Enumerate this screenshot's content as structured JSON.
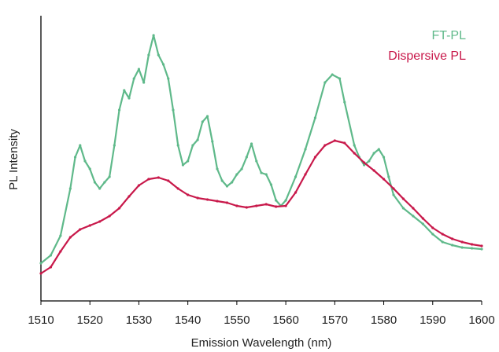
{
  "chart_data": {
    "type": "line",
    "xlabel": "Emission Wavelength (nm)",
    "ylabel": "PL Intensity",
    "xlim": [
      1510,
      1600
    ],
    "xticks": [
      1510,
      1520,
      1530,
      1540,
      1550,
      1560,
      1570,
      1580,
      1590,
      1600
    ],
    "ylim": [
      0,
      360
    ],
    "legend": "upper right",
    "series": [
      {
        "name": "FT-PL",
        "color": "#5fb98a",
        "x": [
          1510,
          1512,
          1514,
          1516,
          1517,
          1518,
          1519,
          1520,
          1521,
          1522,
          1523,
          1524,
          1525,
          1526,
          1527,
          1528,
          1529,
          1530,
          1531,
          1532,
          1533,
          1534,
          1535,
          1536,
          1537,
          1538,
          1539,
          1540,
          1541,
          1542,
          1543,
          1544,
          1545,
          1546,
          1547,
          1548,
          1549,
          1550,
          1551,
          1552,
          1553,
          1554,
          1555,
          1556,
          1557,
          1558,
          1559,
          1560,
          1562,
          1564,
          1566,
          1568,
          1569.5,
          1571,
          1572,
          1574,
          1575,
          1576,
          1577,
          1578,
          1579,
          1580,
          1581,
          1582,
          1584,
          1586,
          1588,
          1590,
          1592,
          1594,
          1596,
          1598,
          1600
        ],
        "values": [
          48,
          58,
          83,
          143,
          183,
          198,
          178,
          168,
          151,
          143,
          151,
          158,
          198,
          243,
          268,
          258,
          283,
          295,
          278,
          313,
          338,
          313,
          301,
          283,
          243,
          198,
          173,
          178,
          198,
          205,
          228,
          235,
          203,
          168,
          153,
          146,
          151,
          161,
          168,
          183,
          200,
          178,
          163,
          161,
          148,
          128,
          121,
          128,
          158,
          193,
          233,
          278,
          288,
          283,
          253,
          198,
          183,
          173,
          178,
          188,
          193,
          183,
          158,
          135,
          118,
          108,
          98,
          85,
          75,
          71,
          68,
          67,
          66
        ]
      },
      {
        "name": "Dispersive PL",
        "color": "#c8184a",
        "x": [
          1510,
          1512,
          1514,
          1516,
          1518,
          1520,
          1522,
          1524,
          1526,
          1528,
          1530,
          1532,
          1534,
          1536,
          1538,
          1540,
          1542,
          1544,
          1546,
          1548,
          1550,
          1552,
          1554,
          1556,
          1558,
          1560,
          1562,
          1564,
          1566,
          1568,
          1570,
          1572,
          1574,
          1576,
          1578,
          1580,
          1582,
          1584,
          1586,
          1588,
          1590,
          1592,
          1594,
          1596,
          1598,
          1600
        ],
        "values": [
          35,
          43,
          63,
          81,
          91,
          96,
          101,
          108,
          118,
          133,
          147,
          155,
          157,
          153,
          143,
          135,
          131,
          129,
          127,
          125,
          121,
          119,
          121,
          123,
          120,
          121,
          138,
          161,
          183,
          198,
          204,
          201,
          188,
          176,
          166,
          155,
          143,
          130,
          118,
          105,
          93,
          85,
          79,
          75,
          72,
          70
        ]
      }
    ]
  }
}
